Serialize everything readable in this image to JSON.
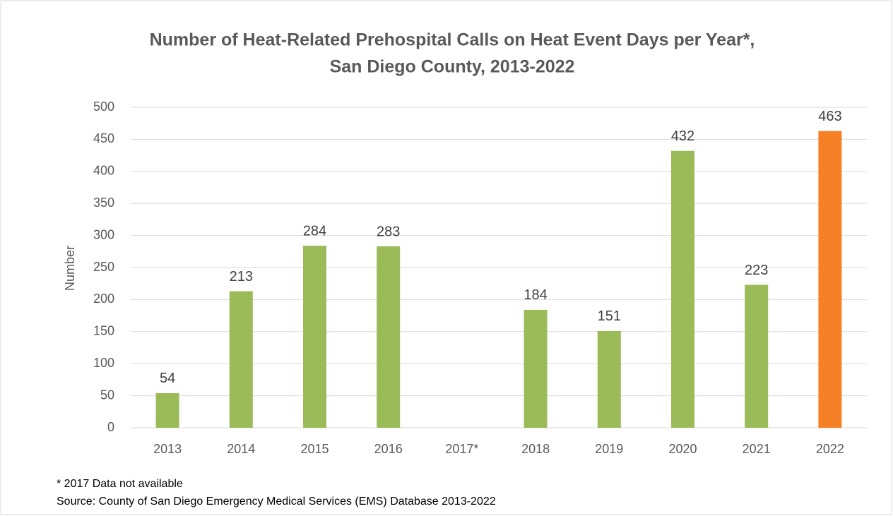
{
  "chart_data": {
    "type": "bar",
    "title": [
      "Number of Heat-Related Prehospital Calls on Heat Event Days per Year*,",
      "San Diego County, 2013-2022"
    ],
    "y_label": "Number",
    "categories": [
      "2013",
      "2014",
      "2015",
      "2016",
      "2017*",
      "2018",
      "2019",
      "2020",
      "2021",
      "2022"
    ],
    "values": [
      54,
      213,
      284,
      283,
      null,
      184,
      151,
      432,
      223,
      463
    ],
    "colors": [
      "#9bbb59",
      "#9bbb59",
      "#9bbb59",
      "#9bbb59",
      "#9bbb59",
      "#9bbb59",
      "#9bbb59",
      "#9bbb59",
      "#9bbb59",
      "#f58025"
    ],
    "ylim": [
      0,
      500
    ],
    "yticks": [
      0,
      50,
      100,
      150,
      200,
      250,
      300,
      350,
      400,
      450,
      500
    ],
    "grid": true,
    "footnotes": [
      "* 2017 Data not available",
      "Source: County of San Diego Emergency Medical Services (EMS) Database 2013-2022"
    ]
  }
}
